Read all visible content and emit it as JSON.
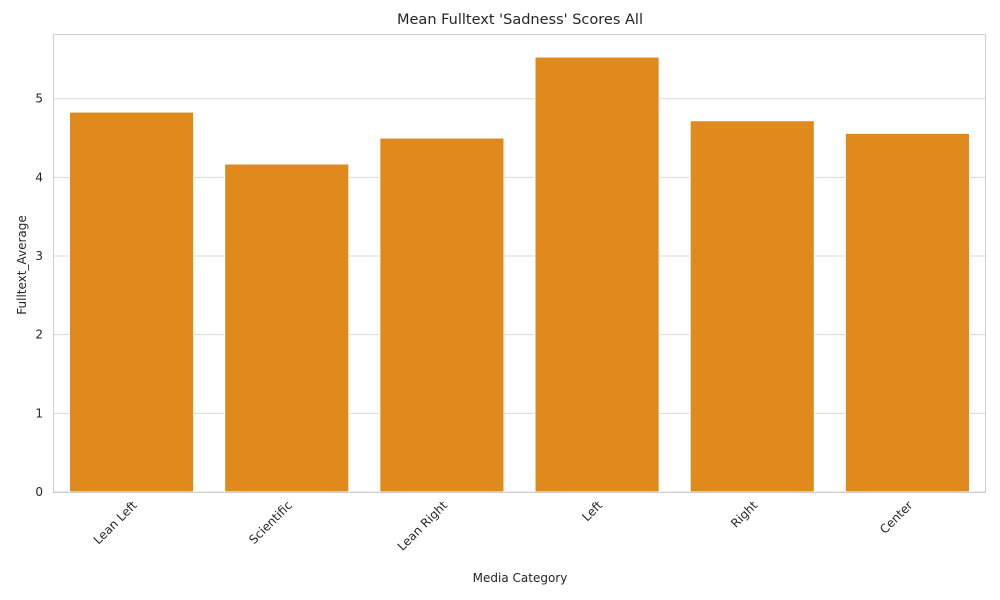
{
  "chart_data": {
    "type": "bar",
    "title": "Mean Fulltext 'Sadness' Scores All",
    "xlabel": "Media Category",
    "ylabel": "Fulltext_Average",
    "categories": [
      "Lean Left",
      "Scientific",
      "Lean Right",
      "Left",
      "Right",
      "Center"
    ],
    "values": [
      4.83,
      4.17,
      4.5,
      5.53,
      4.72,
      4.56
    ],
    "ylim": [
      0,
      5.81
    ],
    "yticks": [
      0,
      1,
      2,
      3,
      4,
      5
    ],
    "grid": true,
    "legend": "none",
    "bar_color": "#e08a1e",
    "x_tick_rotation": 45
  }
}
